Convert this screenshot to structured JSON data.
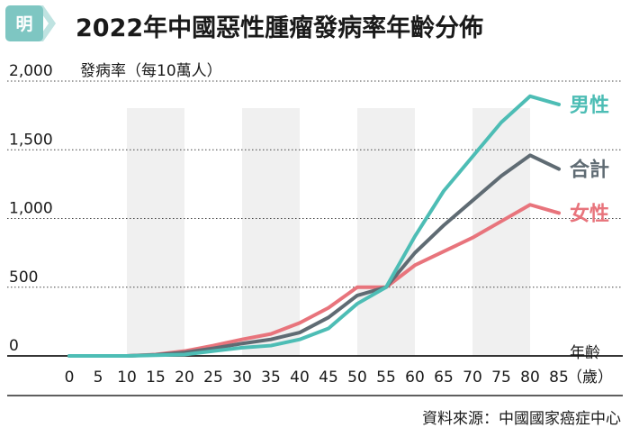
{
  "brand": {
    "logo_char": "明"
  },
  "colors": {
    "male": "#4dbdb5",
    "total": "#5f6b73",
    "female": "#e8747c",
    "band": "#f0f0f0",
    "logo": "#7ec6c2",
    "logo_chevron": "#bfe3e1",
    "grid": "#444444",
    "divider": "#2a2a2a"
  },
  "chart_data": {
    "type": "line",
    "title": "2022年中國惡性腫瘤發病率年齡分佈",
    "ylabel": "發病率（每10萬人）",
    "xlabel_top": "年齡",
    "xlabel_bottom": "（歲）",
    "source": "資料來源：中國國家癌症中心",
    "x": [
      0,
      5,
      10,
      15,
      20,
      25,
      30,
      35,
      40,
      45,
      50,
      55,
      60,
      65,
      70,
      75,
      80,
      85
    ],
    "x_tick_labels": [
      "0",
      "5",
      "10",
      "15",
      "20",
      "25",
      "30",
      "35",
      "40",
      "45",
      "50",
      "55",
      "60",
      "65",
      "70",
      "75",
      "80",
      "85"
    ],
    "ylim": [
      0,
      2000
    ],
    "y_ticks": [
      0,
      500,
      1000,
      1500,
      2000
    ],
    "y_tick_labels": [
      "0",
      "500",
      "1,000",
      "1,500",
      "2,000"
    ],
    "shaded_x_ranges": [
      [
        10,
        20
      ],
      [
        30,
        40
      ],
      [
        50,
        60
      ],
      [
        70,
        80
      ]
    ],
    "series": [
      {
        "key": "male",
        "name": "男性",
        "values": [
          0,
          0,
          0,
          5,
          10,
          35,
          60,
          75,
          120,
          200,
          380,
          500,
          870,
          1200,
          1450,
          1700,
          1890,
          1830
        ]
      },
      {
        "key": "total",
        "name": "合計",
        "values": [
          0,
          0,
          0,
          8,
          25,
          55,
          90,
          120,
          170,
          280,
          440,
          500,
          750,
          950,
          1130,
          1310,
          1460,
          1360
        ]
      },
      {
        "key": "female",
        "name": "女性",
        "values": [
          0,
          0,
          0,
          10,
          35,
          75,
          120,
          160,
          240,
          350,
          500,
          500,
          660,
          760,
          860,
          980,
          1100,
          1040
        ]
      }
    ],
    "grid": true,
    "legend_placement": "right, at line ends"
  }
}
